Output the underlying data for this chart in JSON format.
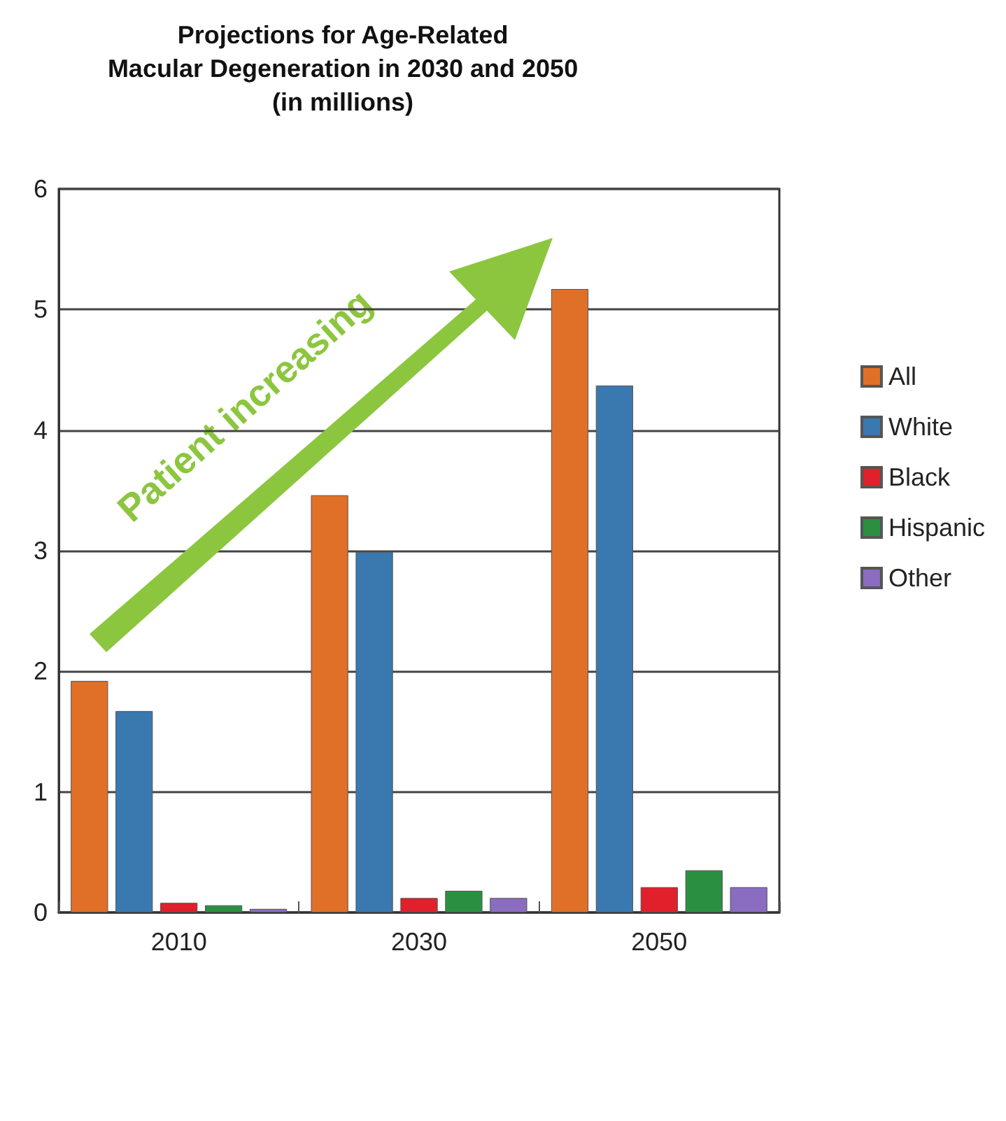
{
  "chart_data": {
    "type": "bar",
    "title": "Projections for Age-Related\nMacular Degeneration in 2030 and 2050\n(in millions)",
    "categories": [
      "2010",
      "2030",
      "2050"
    ],
    "series": [
      {
        "name": "All",
        "color": "#e07028",
        "values": [
          1.92,
          3.46,
          5.17
        ]
      },
      {
        "name": "White",
        "color": "#3a78b0",
        "values": [
          1.67,
          2.99,
          4.37
        ]
      },
      {
        "name": "Black",
        "color": "#e0202a",
        "values": [
          0.08,
          0.12,
          0.21
        ]
      },
      {
        "name": "Hispanic",
        "color": "#2a9040",
        "values": [
          0.06,
          0.18,
          0.35
        ]
      },
      {
        "name": "Other",
        "color": "#8a6cc0",
        "values": [
          0.03,
          0.12,
          0.21
        ]
      }
    ],
    "ylim": [
      0,
      6
    ],
    "yticks": [
      0,
      1,
      2,
      3,
      4,
      5,
      6
    ],
    "grid": "y",
    "legend": "right",
    "annotations": [
      "Patient increasing"
    ]
  }
}
